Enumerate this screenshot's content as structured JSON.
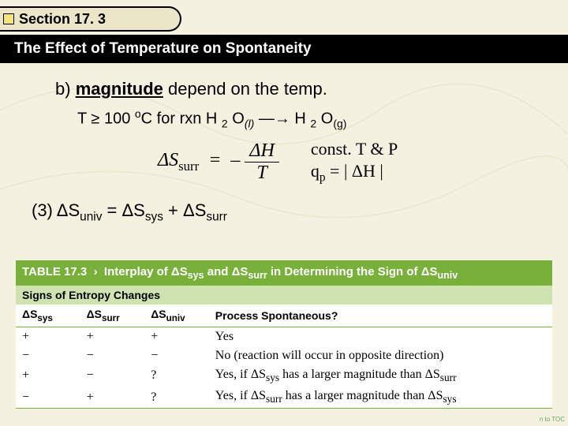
{
  "section": {
    "label": "Section 17. 3"
  },
  "title": "The Effect of Temperature on Spontaneity",
  "body": {
    "line_b_prefix": "b) ",
    "line_b_mag": "magnitude",
    "line_b_rest": " depend on the temp.",
    "temp_line_html": "T ≥ 100 <span class='sup'>o</span>C   for rxn H <span class='sub'>2</span> O<span class='sub-it'>(l)</span>  ―→  H <span class='sub'>2</span> O<span class='sub'>(g)</span>",
    "eq_left_html": "ΔS<span class='sub' style='font-style:normal'>surr</span> &nbsp;=&nbsp; –",
    "eq_frac_num_html": "Δ<span style='font-style:italic'>H</span>",
    "eq_frac_den_html": "<span style='font-style:italic'>T</span>",
    "eq_note_line1": "const. T & P",
    "eq_note_line2_html": "q<span class='sub'>p</span> = | ΔH |",
    "line3_html": "(3)  ΔS<span class='sub'>univ</span>  =  ΔS<span class='sub'>sys</span>  +  ΔS<span class='sub'>surr</span>"
  },
  "table": {
    "caption_html": "<b>TABLE 17.3 &nbsp;›&nbsp; Interplay of ΔS<sub>sys</sub> and ΔS<sub>surr</sub> in Determining the Sign of ΔS<sub>univ</sub></b>",
    "subhead": "Signs of Entropy Changes",
    "columns": [
      "ΔSₛyₛ",
      "ΔSₛᵤᵣᵣ",
      "ΔSᵤₙᵢᵥ",
      "Process Spontaneous?"
    ],
    "columns_html": [
      "ΔS<sub>sys</sub>",
      "ΔS<sub>surr</sub>",
      "ΔS<sub>univ</sub>",
      "Process Spontaneous?"
    ],
    "rows": [
      [
        "+",
        "+",
        "+",
        "Yes"
      ],
      [
        "−",
        "−",
        "−",
        "No (reaction will occur in opposite direction)"
      ],
      [
        "+",
        "−",
        "?",
        "Yes, if ΔSₛyₛ has a larger magnitude than ΔSₛᵤᵣᵣ"
      ],
      [
        "−",
        "+",
        "?",
        "Yes, if ΔSₛᵤᵣᵣ has a larger magnitude than ΔSₛyₛ"
      ]
    ],
    "rows_html": [
      [
        "+",
        "+",
        "+",
        "Yes"
      ],
      [
        "−",
        "−",
        "−",
        "No (reaction will occur in opposite direction)"
      ],
      [
        "+",
        "−",
        "?",
        "Yes, if ΔS<sub>sys</sub> has a larger magnitude than ΔS<sub>surr</sub>"
      ],
      [
        "−",
        "+",
        "?",
        "Yes, if ΔS<sub>surr</sub> has a larger magnitude than ΔS<sub>sys</sub>"
      ]
    ]
  },
  "colors": {
    "page_bg": "#f5f1e0",
    "tab_bg": "#ece6c8",
    "tab_square": "#f5e37a",
    "title_bg": "#000000",
    "title_fg": "#ffffff",
    "table_header_bg": "#78b03a",
    "table_sub_bg": "#cfe3b0"
  },
  "footer_link": "n to TOC"
}
